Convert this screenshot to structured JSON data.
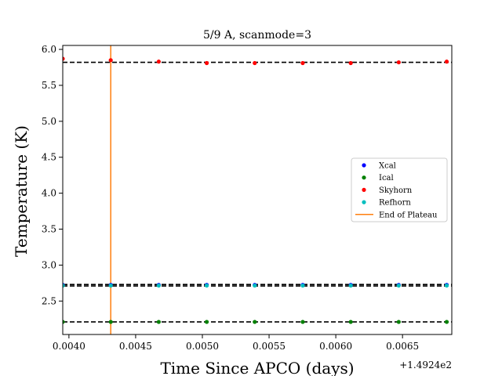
{
  "chart_data": {
    "type": "scatter",
    "title": "5/9 A, scanmode=3",
    "xlabel": "Time Since APCO (days)",
    "ylabel": "Temperature (K)",
    "x_offset_label": "+1.4924e2",
    "xlim": [
      149.2439537,
      149.2468694
    ],
    "ylim": [
      2.035,
      6.055
    ],
    "xticks": [
      149.244,
      149.2445,
      149.245,
      149.2455,
      149.246,
      149.2465
    ],
    "xtick_labels": [
      "0.0040",
      "0.0045",
      "0.0050",
      "0.0055",
      "0.0060",
      "0.0065"
    ],
    "yticks": [
      2.5,
      3.0,
      3.5,
      4.0,
      4.5,
      5.0,
      5.5,
      6.0
    ],
    "ytick_labels": [
      "2.5",
      "3.0",
      "3.5",
      "4.0",
      "4.5",
      "5.0",
      "5.5",
      "6.0"
    ],
    "grid": false,
    "legend_position": "center-right",
    "x": [
      149.2439537,
      149.2443134,
      149.2446731,
      149.2450328,
      149.2453925,
      149.2457522,
      149.2461119,
      149.2464716,
      149.2468313
    ],
    "series": [
      {
        "name": "Xcal",
        "color": "#0000ff",
        "values": [
          2.725,
          2.725,
          2.725,
          2.725,
          2.725,
          2.725,
          2.725,
          2.725,
          2.725
        ]
      },
      {
        "name": "Ical",
        "color": "#008000",
        "values": [
          2.21,
          2.21,
          2.21,
          2.21,
          2.21,
          2.21,
          2.21,
          2.21,
          2.21
        ]
      },
      {
        "name": "Skyhorn",
        "color": "#ff0000",
        "values": [
          5.87,
          5.85,
          5.83,
          5.81,
          5.81,
          5.81,
          5.81,
          5.82,
          5.83
        ]
      },
      {
        "name": "Refhorn",
        "color": "#00bfbf",
        "values": [
          2.715,
          2.715,
          2.715,
          2.715,
          2.715,
          2.715,
          2.715,
          2.715,
          2.715
        ]
      }
    ],
    "reference_lines": {
      "color": "#000000",
      "style": "dashed",
      "y": [
        5.82,
        2.73,
        2.71,
        2.21
      ]
    },
    "vertical_line": {
      "name": "End of Plateau",
      "color": "#ff7f0e",
      "x": 149.2443134
    }
  }
}
